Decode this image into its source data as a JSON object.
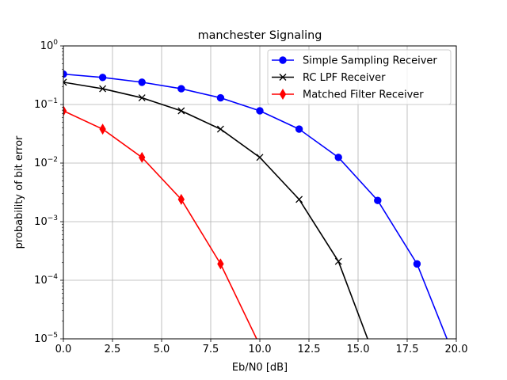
{
  "chart_data": {
    "type": "line",
    "title": "manchester Signaling",
    "xlabel": "Eb/N0 [dB]",
    "ylabel": "probability of bit error",
    "xlim": [
      0,
      20
    ],
    "ylim": [
      1e-05,
      1
    ],
    "yscale": "log",
    "grid": true,
    "legend_position": "top-right",
    "x_ticks": [
      0,
      2.5,
      5,
      7.5,
      10,
      12.5,
      15,
      17.5,
      20
    ],
    "x_tick_labels": [
      "0.0",
      "2.5",
      "5.0",
      "7.5",
      "10.0",
      "12.5",
      "15.0",
      "17.5",
      "20.0"
    ],
    "y_ticks": [
      -5,
      -4,
      -3,
      -2,
      -1,
      0
    ],
    "series": [
      {
        "name": "Simple Sampling Receiver",
        "color": "#0000ff",
        "marker": "circle",
        "x": [
          0,
          2,
          4,
          6,
          8,
          10,
          12,
          14,
          16,
          18,
          20
        ],
        "y": [
          0.33,
          0.29,
          0.24,
          0.186,
          0.13,
          0.078,
          0.038,
          0.0125,
          0.0023,
          0.00019,
          4e-06
        ]
      },
      {
        "name": "RC LPF Receiver",
        "color": "#000000",
        "marker": "x",
        "x": [
          0,
          2,
          4,
          6,
          8,
          10,
          12,
          14,
          16
        ],
        "y": [
          0.24,
          0.186,
          0.13,
          0.078,
          0.038,
          0.0125,
          0.0024,
          0.00021,
          3.5e-06
        ]
      },
      {
        "name": "Matched Filter Receiver",
        "color": "#ff0000",
        "marker": "diamond",
        "x": [
          0,
          2,
          4,
          6,
          8,
          10
        ],
        "y": [
          0.078,
          0.038,
          0.0125,
          0.0024,
          0.00019,
          7.7e-06
        ]
      }
    ]
  }
}
